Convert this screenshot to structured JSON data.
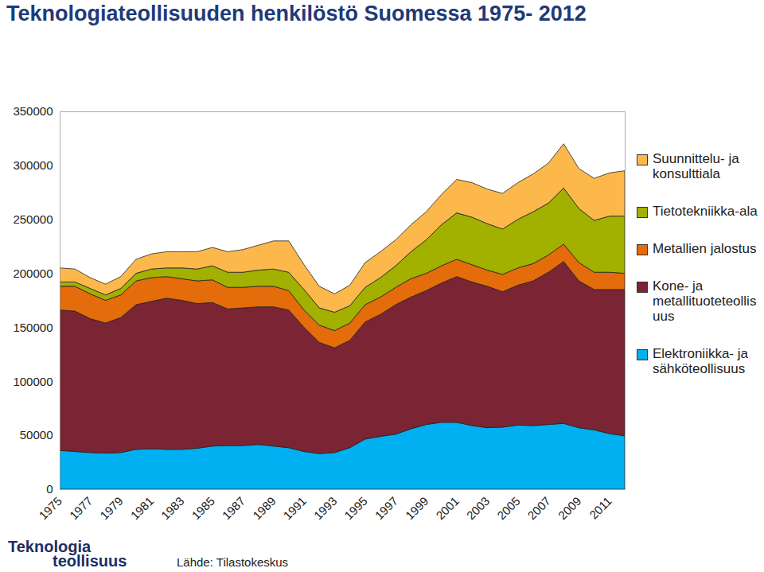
{
  "chart_data": {
    "type": "area",
    "stacked": true,
    "title": "Teknologiateollisuuden henkilöstö Suomessa 1975- 2012",
    "source": "Lähde: Tilastokeskus",
    "logo": [
      "Teknologia",
      "teollisuus"
    ],
    "legend": "right",
    "x": [
      1975,
      1976,
      1977,
      1978,
      1979,
      1980,
      1981,
      1982,
      1983,
      1984,
      1985,
      1986,
      1987,
      1988,
      1989,
      1990,
      1991,
      1992,
      1993,
      1994,
      1995,
      1996,
      1997,
      1998,
      1999,
      2000,
      2001,
      2002,
      2003,
      2004,
      2005,
      2006,
      2007,
      2008,
      2009,
      2010,
      2011,
      2012
    ],
    "xlim": [
      1975,
      2012
    ],
    "xticks": [
      1975,
      1977,
      1979,
      1981,
      1983,
      1985,
      1987,
      1989,
      1991,
      1993,
      1995,
      1997,
      1999,
      2001,
      2003,
      2005,
      2007,
      2009,
      2011
    ],
    "ylim": [
      0,
      350000
    ],
    "yticks": [
      0,
      50000,
      100000,
      150000,
      200000,
      250000,
      300000,
      350000
    ],
    "series": [
      {
        "name": "Elektroniikka- ja sähköteollisuus",
        "color": "#00b0f0",
        "values": [
          36000,
          35000,
          34000,
          33500,
          34000,
          37000,
          37500,
          37000,
          37000,
          38000,
          40000,
          40500,
          40500,
          41500,
          40000,
          38500,
          35000,
          33000,
          34000,
          38500,
          46500,
          49000,
          51000,
          56000,
          60000,
          62000,
          62000,
          59000,
          57000,
          57500,
          59500,
          59000,
          60000,
          61000,
          57000,
          55000,
          51500,
          49500
        ]
      },
      {
        "name": "Kone- ja metallituoteteollisuus",
        "color": "#7b2434",
        "values": [
          130000,
          130000,
          124000,
          120500,
          125000,
          134000,
          136500,
          140000,
          138000,
          134000,
          133000,
          126500,
          127500,
          127500,
          129000,
          127500,
          115000,
          103000,
          97000,
          99500,
          108500,
          113000,
          120000,
          122000,
          124000,
          129000,
          135000,
          133000,
          131000,
          125500,
          129500,
          134000,
          141000,
          150000,
          136000,
          130000,
          133500,
          135500
        ]
      },
      {
        "name": "Metallien jalostus",
        "color": "#e46c0a",
        "values": [
          22000,
          23000,
          23000,
          21000,
          21000,
          22000,
          22000,
          20000,
          20000,
          21000,
          21000,
          20000,
          19000,
          19000,
          19000,
          18000,
          16000,
          16000,
          16000,
          16000,
          16000,
          16000,
          16000,
          17000,
          16000,
          16000,
          16000,
          16000,
          15000,
          16000,
          16000,
          16000,
          16000,
          16000,
          17000,
          16000,
          16000,
          15000
        ]
      },
      {
        "name": "Tietotekniikka-ala",
        "color": "#a2b000",
        "values": [
          4000,
          4000,
          5000,
          5000,
          6000,
          7000,
          8000,
          8000,
          10000,
          11000,
          13000,
          14000,
          14000,
          15000,
          16000,
          17000,
          19000,
          16000,
          17000,
          16000,
          16000,
          18000,
          20000,
          25000,
          31000,
          38000,
          43000,
          44000,
          43000,
          42000,
          45000,
          48000,
          48000,
          52000,
          50000,
          48000,
          52000,
          53000
        ]
      },
      {
        "name": "Suunnittelu- ja konsulttiala",
        "color": "#fdb84c",
        "values": [
          13000,
          12000,
          10000,
          10000,
          11000,
          13000,
          14000,
          15000,
          15000,
          16000,
          17000,
          19000,
          21000,
          23000,
          26000,
          29000,
          23000,
          20000,
          17000,
          19000,
          23000,
          24000,
          24000,
          25000,
          26000,
          28000,
          31000,
          32000,
          32000,
          33000,
          34000,
          35000,
          37000,
          41000,
          37000,
          39000,
          40000,
          42000
        ]
      }
    ]
  }
}
